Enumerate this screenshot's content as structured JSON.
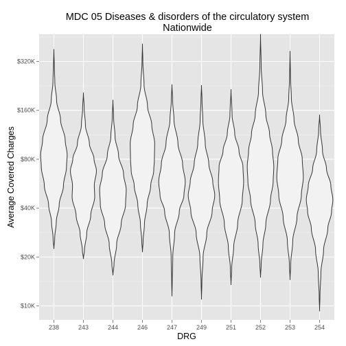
{
  "chart_data": {
    "type": "violin",
    "title": "MDC 05 Diseases & disorders of the circulatory system",
    "subtitle": "Nationwide",
    "xlabel": "DRG",
    "ylabel": "Average Covered Charges",
    "y_scale": "log2",
    "ylim": [
      8200,
      470000
    ],
    "y_ticks": [
      10000,
      20000,
      40000,
      80000,
      160000,
      320000
    ],
    "y_tick_labels": [
      "$10K",
      "$20K",
      "$40K",
      "$80K",
      "$160K",
      "$320K"
    ],
    "grid": true,
    "panel_background": "#e5e5e5",
    "violin_fill": "#f2f2f2",
    "violin_stroke": "#333333",
    "categories": [
      "238",
      "243",
      "244",
      "246",
      "247",
      "249",
      "251",
      "252",
      "253",
      "254"
    ],
    "series": [
      {
        "category": "238",
        "min": 22500,
        "max": 380000,
        "profile": [
          [
            22500,
            0
          ],
          [
            26000,
            0.06
          ],
          [
            33000,
            0.18
          ],
          [
            42000,
            0.4
          ],
          [
            55000,
            0.72
          ],
          [
            72000,
            0.95
          ],
          [
            85000,
            1.0
          ],
          [
            105000,
            0.85
          ],
          [
            140000,
            0.5
          ],
          [
            185000,
            0.2
          ],
          [
            240000,
            0.07
          ],
          [
            300000,
            0.03
          ],
          [
            380000,
            0
          ]
        ]
      },
      {
        "category": "243",
        "min": 19500,
        "max": 205000,
        "profile": [
          [
            19500,
            0
          ],
          [
            22000,
            0.08
          ],
          [
            28000,
            0.25
          ],
          [
            36000,
            0.55
          ],
          [
            47000,
            0.85
          ],
          [
            55000,
            0.82
          ],
          [
            68000,
            0.98
          ],
          [
            80000,
            0.8
          ],
          [
            100000,
            0.45
          ],
          [
            130000,
            0.15
          ],
          [
            165000,
            0.06
          ],
          [
            205000,
            0
          ]
        ]
      },
      {
        "category": "244",
        "min": 15500,
        "max": 185000,
        "profile": [
          [
            15500,
            0
          ],
          [
            18000,
            0.08
          ],
          [
            24000,
            0.28
          ],
          [
            32000,
            0.62
          ],
          [
            42000,
            0.95
          ],
          [
            52000,
            1.0
          ],
          [
            65000,
            0.8
          ],
          [
            85000,
            0.42
          ],
          [
            110000,
            0.16
          ],
          [
            145000,
            0.05
          ],
          [
            185000,
            0
          ]
        ]
      },
      {
        "category": "246",
        "min": 21500,
        "max": 410000,
        "profile": [
          [
            21500,
            0
          ],
          [
            25000,
            0.05
          ],
          [
            32000,
            0.15
          ],
          [
            42000,
            0.35
          ],
          [
            55000,
            0.62
          ],
          [
            68000,
            0.85
          ],
          [
            80000,
            0.9
          ],
          [
            100000,
            0.92
          ],
          [
            130000,
            0.7
          ],
          [
            170000,
            0.38
          ],
          [
            230000,
            0.12
          ],
          [
            320000,
            0.03
          ],
          [
            410000,
            0
          ]
        ]
      },
      {
        "category": "247",
        "min": 11500,
        "max": 230000,
        "profile": [
          [
            11500,
            0
          ],
          [
            14000,
            0.02
          ],
          [
            20000,
            0.06
          ],
          [
            28000,
            0.2
          ],
          [
            38000,
            0.55
          ],
          [
            48000,
            0.9
          ],
          [
            58000,
            1.0
          ],
          [
            75000,
            0.8
          ],
          [
            100000,
            0.45
          ],
          [
            140000,
            0.15
          ],
          [
            185000,
            0.05
          ],
          [
            230000,
            0
          ]
        ]
      },
      {
        "category": "249",
        "min": 11000,
        "max": 228000,
        "profile": [
          [
            11000,
            0
          ],
          [
            14000,
            0.03
          ],
          [
            20000,
            0.12
          ],
          [
            28000,
            0.4
          ],
          [
            38000,
            0.8
          ],
          [
            48000,
            1.0
          ],
          [
            58000,
            0.85
          ],
          [
            75000,
            0.55
          ],
          [
            100000,
            0.28
          ],
          [
            140000,
            0.1
          ],
          [
            185000,
            0.04
          ],
          [
            228000,
            0
          ]
        ]
      },
      {
        "category": "251",
        "min": 13500,
        "max": 215000,
        "profile": [
          [
            13500,
            0
          ],
          [
            17000,
            0.05
          ],
          [
            23000,
            0.2
          ],
          [
            32000,
            0.5
          ],
          [
            45000,
            0.85
          ],
          [
            58000,
            0.95
          ],
          [
            72000,
            0.9
          ],
          [
            90000,
            0.6
          ],
          [
            115000,
            0.28
          ],
          [
            150000,
            0.08
          ],
          [
            215000,
            0
          ]
        ]
      },
      {
        "category": "252",
        "min": 15000,
        "max": 470000,
        "profile": [
          [
            15000,
            0
          ],
          [
            18000,
            0.05
          ],
          [
            24000,
            0.18
          ],
          [
            32000,
            0.4
          ],
          [
            45000,
            0.75
          ],
          [
            58000,
            0.95
          ],
          [
            72000,
            1.0
          ],
          [
            90000,
            0.9
          ],
          [
            115000,
            0.68
          ],
          [
            150000,
            0.4
          ],
          [
            210000,
            0.15
          ],
          [
            300000,
            0.05
          ],
          [
            470000,
            0
          ]
        ]
      },
      {
        "category": "253",
        "min": 14500,
        "max": 370000,
        "profile": [
          [
            14500,
            0
          ],
          [
            18000,
            0.05
          ],
          [
            25000,
            0.2
          ],
          [
            35000,
            0.52
          ],
          [
            48000,
            0.85
          ],
          [
            62000,
            1.0
          ],
          [
            80000,
            0.92
          ],
          [
            105000,
            0.62
          ],
          [
            140000,
            0.3
          ],
          [
            190000,
            0.1
          ],
          [
            260000,
            0.03
          ],
          [
            370000,
            0
          ]
        ]
      },
      {
        "category": "254",
        "min": 9300,
        "max": 150000,
        "profile": [
          [
            9300,
            0
          ],
          [
            11500,
            0.03
          ],
          [
            16000,
            0.1
          ],
          [
            22000,
            0.3
          ],
          [
            30000,
            0.62
          ],
          [
            38000,
            0.9
          ],
          [
            45000,
            1.0
          ],
          [
            55000,
            0.85
          ],
          [
            70000,
            0.52
          ],
          [
            90000,
            0.22
          ],
          [
            120000,
            0.07
          ],
          [
            150000,
            0
          ]
        ]
      }
    ]
  }
}
